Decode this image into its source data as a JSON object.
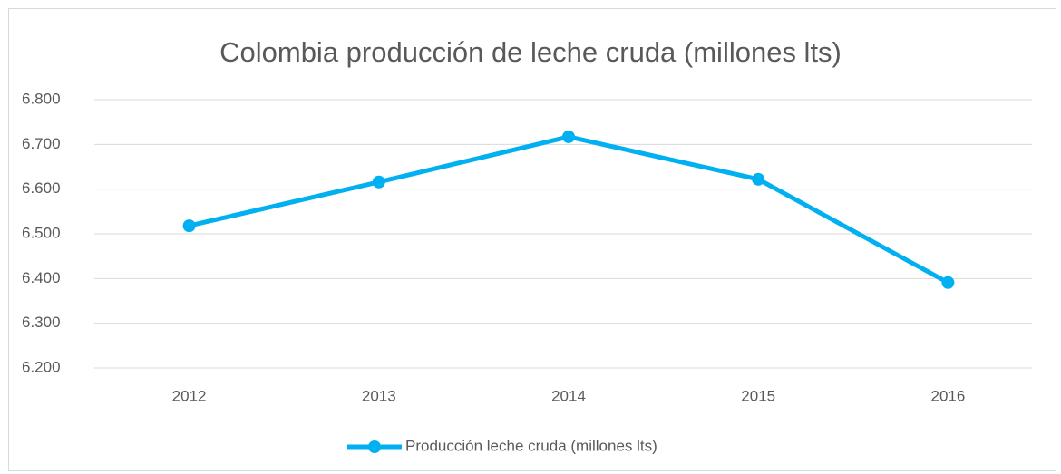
{
  "chart_data": {
    "type": "line",
    "title": "Colombia producción de leche cruda (millones lts)",
    "categories": [
      "2012",
      "2013",
      "2014",
      "2015",
      "2016"
    ],
    "series": [
      {
        "name": "Producción leche cruda (millones lts)",
        "color": "#00b0f0",
        "values": [
          6518,
          6616,
          6717,
          6622,
          6391
        ]
      }
    ],
    "ylim": [
      6200,
      6800
    ],
    "yticks": [
      {
        "value": 6200,
        "label": "6.200"
      },
      {
        "value": 6300,
        "label": "6.300"
      },
      {
        "value": 6400,
        "label": "6.400"
      },
      {
        "value": 6500,
        "label": "6.500"
      },
      {
        "value": 6600,
        "label": "6.600"
      },
      {
        "value": 6700,
        "label": "6.700"
      },
      {
        "value": 6800,
        "label": "6.800"
      }
    ],
    "grid": true,
    "legend": "bottom"
  }
}
